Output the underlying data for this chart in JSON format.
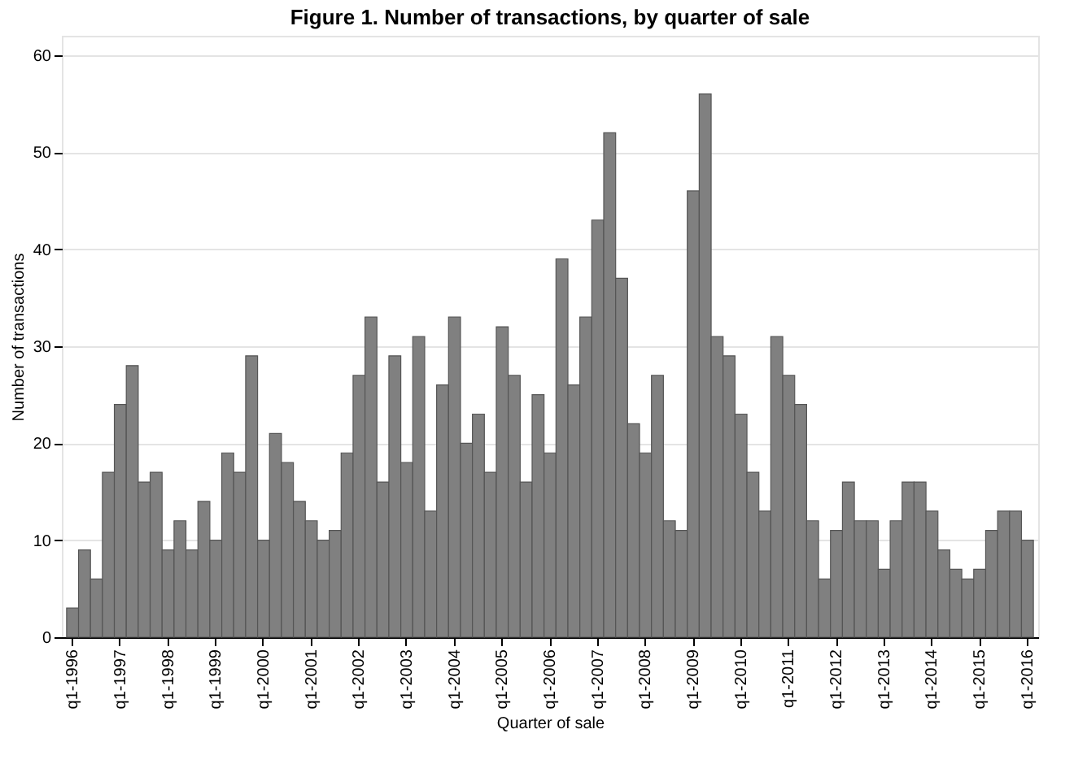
{
  "chart_data": {
    "type": "bar",
    "title": "Figure 1. Number of transactions, by quarter of sale",
    "xlabel": "Quarter of sale",
    "ylabel": "Number of transactions",
    "categories": [
      "q1-1996",
      null,
      null,
      null,
      "q1-1997",
      null,
      null,
      null,
      "q1-1998",
      null,
      null,
      null,
      "q1-1999",
      null,
      null,
      null,
      "q1-2000",
      null,
      null,
      null,
      "q1-2001",
      null,
      null,
      null,
      "q1-2002",
      null,
      null,
      null,
      "q1-2003",
      null,
      null,
      null,
      "q1-2004",
      null,
      null,
      null,
      "q1-2005",
      null,
      null,
      null,
      "q1-2006",
      null,
      null,
      null,
      "q1-2007",
      null,
      null,
      null,
      "q1-2008",
      null,
      null,
      null,
      "q1-2009",
      null,
      null,
      null,
      "q1-2010",
      null,
      null,
      null,
      "q1-2011",
      null,
      null,
      null,
      "q1-2012",
      null,
      null,
      null,
      "q1-2013",
      null,
      null,
      null,
      "q1-2014",
      null,
      null,
      null,
      "q1-2015",
      null,
      null,
      null,
      "q1-2016"
    ],
    "values": [
      3,
      9,
      6,
      17,
      24,
      28,
      16,
      17,
      9,
      12,
      9,
      14,
      10,
      19,
      17,
      29,
      10,
      21,
      18,
      14,
      12,
      10,
      11,
      19,
      27,
      33,
      16,
      29,
      18,
      31,
      13,
      26,
      33,
      20,
      23,
      17,
      32,
      27,
      16,
      25,
      19,
      39,
      26,
      33,
      43,
      52,
      37,
      22,
      19,
      27,
      12,
      11,
      46,
      56,
      31,
      29,
      23,
      17,
      13,
      31,
      27,
      24,
      12,
      6,
      11,
      16,
      12,
      12,
      7,
      12,
      16,
      16,
      13,
      9,
      7,
      6,
      7,
      11,
      13,
      13,
      10
    ],
    "color": "#808080",
    "ylim": [
      0,
      62
    ],
    "yticks": [
      0,
      10,
      20,
      30,
      40,
      50,
      60
    ],
    "grid": "y"
  }
}
